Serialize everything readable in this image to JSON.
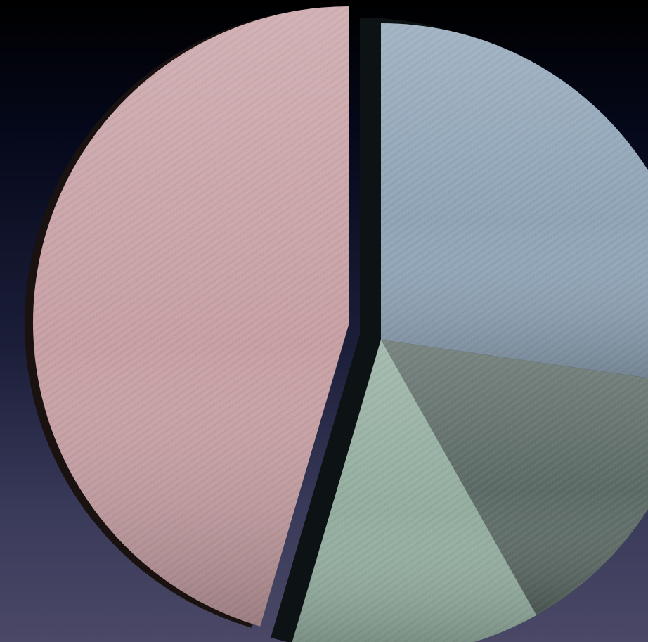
{
  "chart_data": {
    "type": "pie",
    "title": "",
    "exploded": true,
    "style": "3d-textured",
    "start_angle_deg": 0,
    "direction": "clockwise",
    "slices": [
      {
        "value": 30,
        "color": "#8fa4b7",
        "exploded": true
      },
      {
        "value": 16,
        "color": "#5d6b66",
        "exploded": true
      },
      {
        "value": 14,
        "color": "#93ad9f",
        "exploded": true
      },
      {
        "value": 50,
        "color": "#c7a0a4",
        "exploded": false
      }
    ]
  }
}
